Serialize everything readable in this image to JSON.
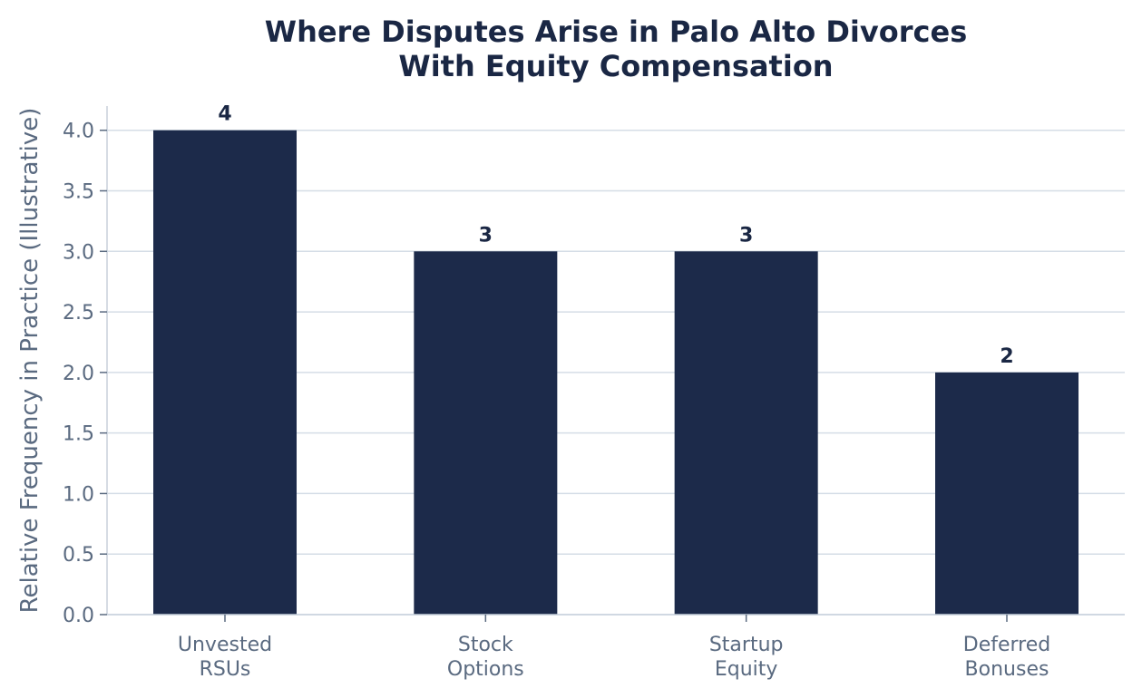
{
  "chart_data": {
    "type": "bar",
    "title": "Where Disputes Arise in Palo Alto Divorces\nWith Equity Compensation",
    "xlabel": "",
    "ylabel": "Relative Frequency in Practice (Illustrative)",
    "categories": [
      "Unvested\nRSUs",
      "Stock\nOptions",
      "Startup\nEquity",
      "Deferred\nBonuses"
    ],
    "values": [
      4,
      3,
      3,
      2
    ],
    "data_labels": [
      "4",
      "3",
      "3",
      "2"
    ],
    "ylim": [
      0,
      4.2
    ],
    "yticks": [
      0.0,
      0.5,
      1.0,
      1.5,
      2.0,
      2.5,
      3.0,
      3.5,
      4.0
    ],
    "ytick_labels": [
      "0.0",
      "0.5",
      "1.0",
      "1.5",
      "2.0",
      "2.5",
      "3.0",
      "3.5",
      "4.0"
    ],
    "grid": true,
    "grid_axis": "y",
    "legend": "none",
    "colors": {
      "bar": "#1c2a4a",
      "title": "#1a2744",
      "data_label": "#1a2744",
      "tick_text": "#5a6a80",
      "axis_label": "#5a6a80",
      "grid": "#d5dde6",
      "axis": "#c8d1dc"
    }
  }
}
